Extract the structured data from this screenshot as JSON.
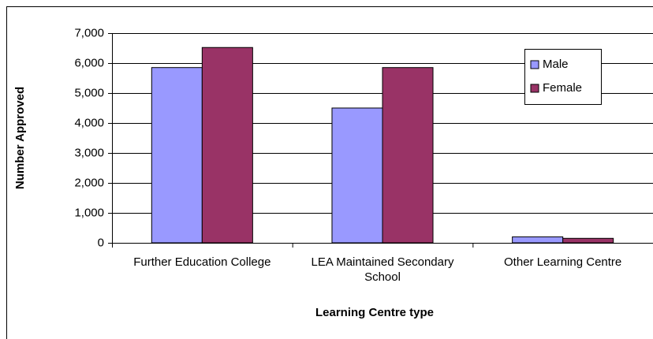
{
  "chart_data": {
    "type": "bar",
    "categories": [
      "Further Education College",
      "LEA Maintained Secondary School",
      "Other Learning Centre"
    ],
    "series": [
      {
        "name": "Male",
        "color": "#9999ff",
        "values": [
          5850,
          4500,
          200
        ]
      },
      {
        "name": "Female",
        "color": "#993366",
        "values": [
          6520,
          5850,
          150
        ]
      }
    ],
    "x_label": "Learning Centre type",
    "y_label": "Number Approved",
    "ylim": [
      0,
      7000
    ],
    "yticks": [
      0,
      {
        "value": 1000,
        "label": "1,000"
      },
      {
        "value": 2000,
        "label": "2,000"
      },
      {
        "value": 3000,
        "label": "3,000"
      },
      {
        "value": 4000,
        "label": "4,000"
      },
      {
        "value": 5000,
        "label": "5,000"
      },
      {
        "value": 6000,
        "label": "6,000"
      },
      {
        "value": 7000,
        "label": "7,000"
      }
    ],
    "grid": true,
    "legend": "upper right"
  }
}
